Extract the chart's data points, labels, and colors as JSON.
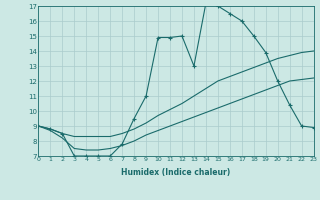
{
  "xlabel": "Humidex (Indice chaleur)",
  "bg_color": "#cce8e4",
  "grid_color": "#aacccc",
  "line_color": "#1a6b6b",
  "xlim": [
    0,
    23
  ],
  "ylim": [
    7,
    17
  ],
  "xticks": [
    0,
    1,
    2,
    3,
    4,
    5,
    6,
    7,
    8,
    9,
    10,
    11,
    12,
    13,
    14,
    15,
    16,
    17,
    18,
    19,
    20,
    21,
    22,
    23
  ],
  "yticks": [
    7,
    8,
    9,
    10,
    11,
    12,
    13,
    14,
    15,
    16,
    17
  ],
  "series1_x": [
    0,
    1,
    2,
    3,
    4,
    5,
    6,
    7,
    8,
    9,
    10,
    11,
    12,
    13,
    14,
    15,
    16,
    17,
    18,
    19,
    20,
    21,
    22,
    23
  ],
  "series1_y": [
    9,
    8.8,
    8.5,
    7,
    7,
    7,
    7,
    7.8,
    9.5,
    11,
    14.9,
    14.9,
    15,
    13,
    17.2,
    17,
    16.5,
    16,
    15,
    13.9,
    12,
    10.4,
    9,
    8.9
  ],
  "series2_x": [
    0,
    1,
    2,
    3,
    4,
    5,
    6,
    7,
    8,
    9,
    10,
    11,
    12,
    13,
    14,
    15,
    16,
    17,
    18,
    19,
    20,
    21,
    22,
    23
  ],
  "series2_y": [
    9,
    8.8,
    8.5,
    8.3,
    8.3,
    8.3,
    8.3,
    8.5,
    8.8,
    9.2,
    9.7,
    10.1,
    10.5,
    11.0,
    11.5,
    12.0,
    12.3,
    12.6,
    12.9,
    13.2,
    13.5,
    13.7,
    13.9,
    14.0
  ],
  "series3_x": [
    0,
    1,
    2,
    3,
    4,
    5,
    6,
    7,
    8,
    9,
    10,
    11,
    12,
    13,
    14,
    15,
    16,
    17,
    18,
    19,
    20,
    21,
    22,
    23
  ],
  "series3_y": [
    9,
    8.7,
    8.2,
    7.5,
    7.4,
    7.4,
    7.5,
    7.7,
    8.0,
    8.4,
    8.7,
    9.0,
    9.3,
    9.6,
    9.9,
    10.2,
    10.5,
    10.8,
    11.1,
    11.4,
    11.7,
    12.0,
    12.1,
    12.2
  ]
}
